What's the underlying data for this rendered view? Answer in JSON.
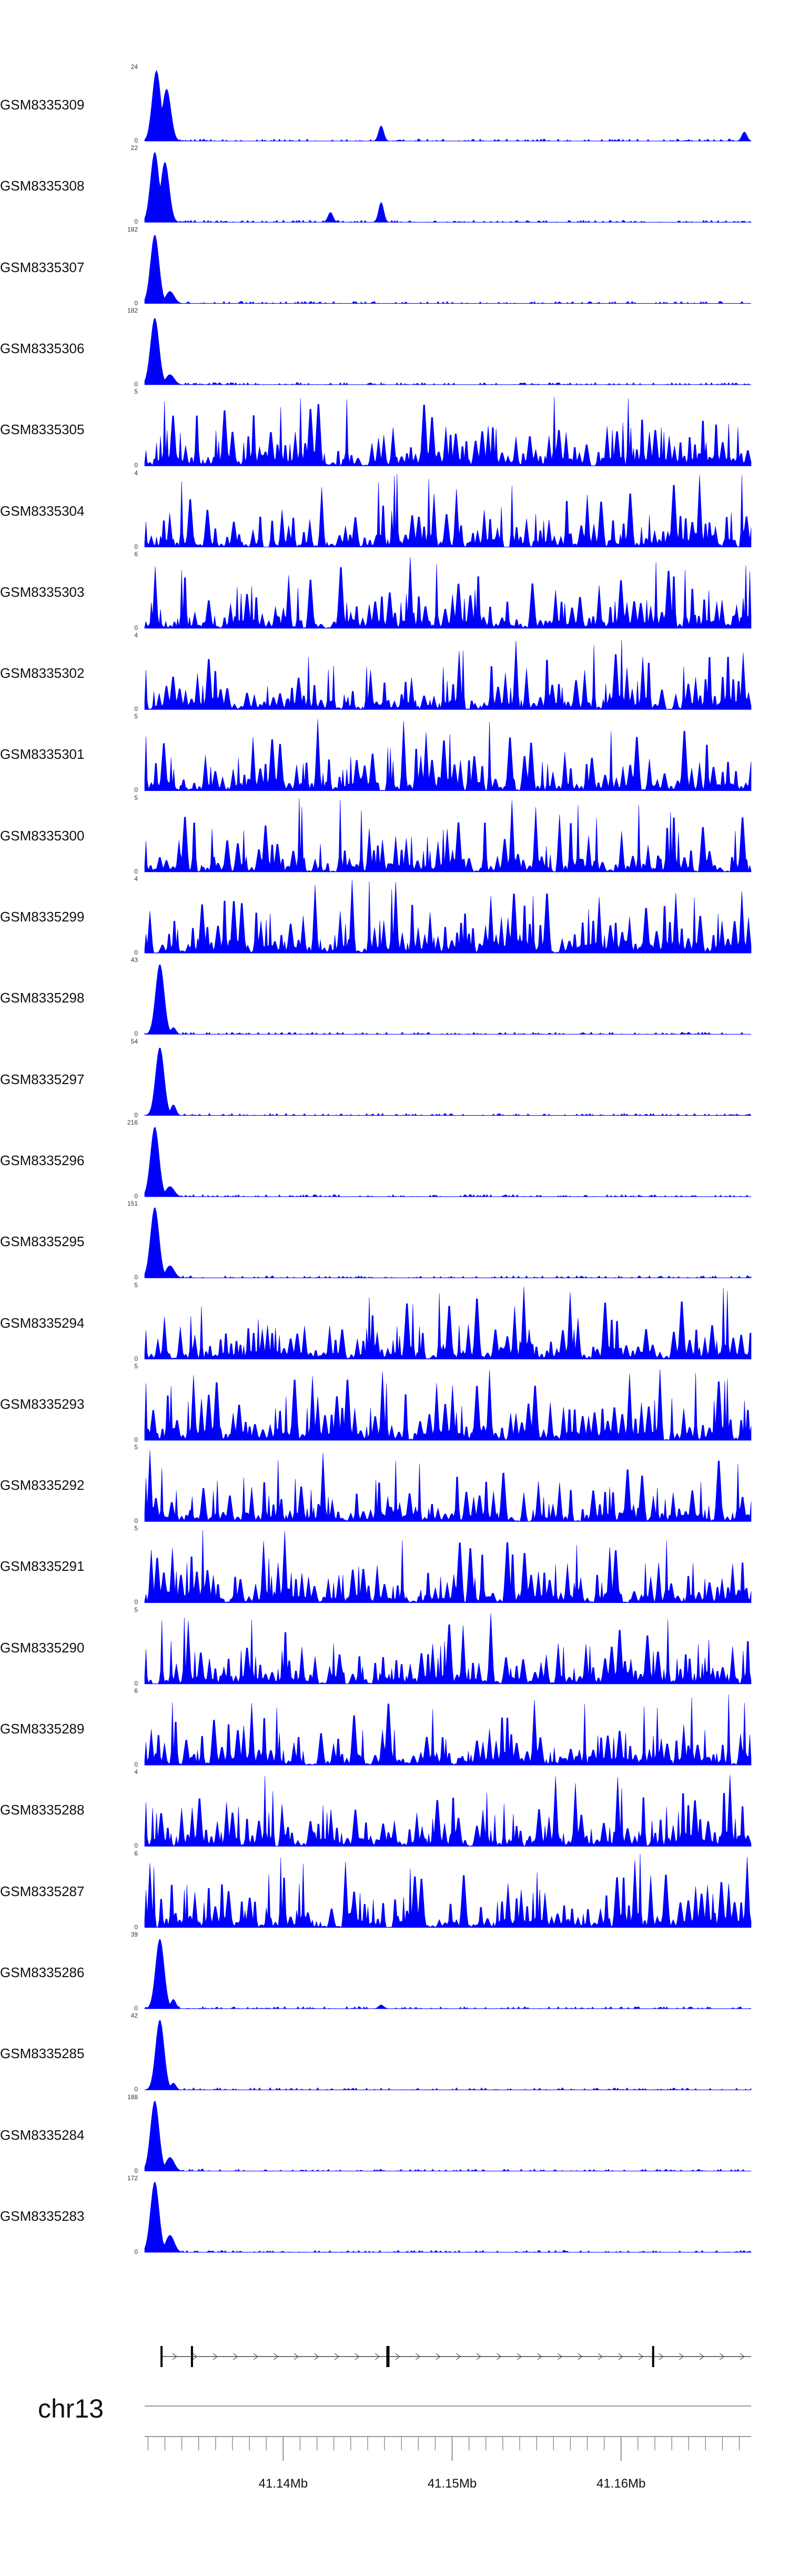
{
  "chart_data": {
    "type": "area",
    "color": "#0000ff",
    "chromosome": "chr13",
    "xlim": [
      41.1318,
      41.1677
    ],
    "x_ticks": [
      41.14,
      41.15,
      41.16
    ],
    "x_tick_labels": [
      "41.14Mb",
      "41.15Mb",
      "41.16Mb"
    ],
    "gene_track": {
      "x_start": 41.1328,
      "x_end": 41.1677,
      "strand": "+",
      "exons": [
        41.1328,
        41.1346,
        41.1462,
        41.1619
      ]
    },
    "series": [
      {
        "name": "GSM8335309",
        "ymax": 24,
        "ymin": 0,
        "profile": "peaky",
        "peak_x": [
          41.1325,
          41.1331
        ],
        "peak_y": [
          23,
          17
        ],
        "extra_peaks": [
          [
            41.1458,
            5
          ],
          [
            41.1673,
            3
          ]
        ]
      },
      {
        "name": "GSM8335308",
        "ymax": 22,
        "ymin": 0,
        "profile": "peaky",
        "peak_x": [
          41.1324,
          41.133
        ],
        "peak_y": [
          21,
          18
        ],
        "extra_peaks": [
          [
            41.1458,
            6
          ],
          [
            41.1428,
            3
          ]
        ]
      },
      {
        "name": "GSM8335307",
        "ymax": 182,
        "ymin": 0,
        "profile": "peaky",
        "peak_x": [
          41.1324,
          41.1333
        ],
        "peak_y": [
          170,
          30
        ],
        "extra_peaks": []
      },
      {
        "name": "GSM8335306",
        "ymax": 182,
        "ymin": 0,
        "profile": "peaky",
        "peak_x": [
          41.1324,
          41.1333
        ],
        "peak_y": [
          165,
          25
        ],
        "extra_peaks": []
      },
      {
        "name": "GSM8335305",
        "ymax": 5,
        "ymin": 0,
        "profile": "noise",
        "seed": 11
      },
      {
        "name": "GSM8335304",
        "ymax": 4,
        "ymin": 0,
        "profile": "noise",
        "seed": 23
      },
      {
        "name": "GSM8335303",
        "ymax": 6,
        "ymin": 0,
        "profile": "noise",
        "seed": 37
      },
      {
        "name": "GSM8335302",
        "ymax": 4,
        "ymin": 0,
        "profile": "noise",
        "seed": 41
      },
      {
        "name": "GSM8335301",
        "ymax": 5,
        "ymin": 0,
        "profile": "noise",
        "seed": 53
      },
      {
        "name": "GSM8335300",
        "ymax": 5,
        "ymin": 0,
        "profile": "noise",
        "seed": 67
      },
      {
        "name": "GSM8335299",
        "ymax": 4,
        "ymin": 0,
        "profile": "noise",
        "seed": 71
      },
      {
        "name": "GSM8335298",
        "ymax": 43,
        "ymin": 0,
        "profile": "peaky",
        "peak_x": [
          41.1327
        ],
        "peak_y": [
          41
        ],
        "extra_peaks": [
          [
            41.1335,
            4
          ]
        ]
      },
      {
        "name": "GSM8335297",
        "ymax": 54,
        "ymin": 0,
        "profile": "peaky",
        "peak_x": [
          41.1327
        ],
        "peak_y": [
          50
        ],
        "extra_peaks": [
          [
            41.1335,
            8
          ]
        ]
      },
      {
        "name": "GSM8335296",
        "ymax": 216,
        "ymin": 0,
        "profile": "peaky",
        "peak_x": [
          41.1324,
          41.1333
        ],
        "peak_y": [
          205,
          30
        ],
        "extra_peaks": []
      },
      {
        "name": "GSM8335295",
        "ymax": 151,
        "ymin": 0,
        "profile": "peaky",
        "peak_x": [
          41.1324,
          41.1333
        ],
        "peak_y": [
          145,
          25
        ],
        "extra_peaks": []
      },
      {
        "name": "GSM8335294",
        "ymax": 5,
        "ymin": 0,
        "profile": "noise",
        "seed": 83
      },
      {
        "name": "GSM8335293",
        "ymax": 5,
        "ymin": 0,
        "profile": "noise",
        "seed": 97
      },
      {
        "name": "GSM8335292",
        "ymax": 5,
        "ymin": 0,
        "profile": "noise",
        "seed": 101
      },
      {
        "name": "GSM8335291",
        "ymax": 5,
        "ymin": 0,
        "profile": "noise",
        "seed": 113
      },
      {
        "name": "GSM8335290",
        "ymax": 5,
        "ymin": 0,
        "profile": "noise",
        "seed": 127
      },
      {
        "name": "GSM8335289",
        "ymax": 6,
        "ymin": 0,
        "profile": "noise",
        "seed": 131
      },
      {
        "name": "GSM8335288",
        "ymax": 4,
        "ymin": 0,
        "profile": "noise",
        "seed": 139
      },
      {
        "name": "GSM8335287",
        "ymax": 6,
        "ymin": 0,
        "profile": "noise",
        "seed": 149
      },
      {
        "name": "GSM8335286",
        "ymax": 39,
        "ymin": 0,
        "profile": "peaky",
        "peak_x": [
          41.1327
        ],
        "peak_y": [
          37
        ],
        "extra_peaks": [
          [
            41.1335,
            5
          ],
          [
            41.1458,
            2
          ]
        ]
      },
      {
        "name": "GSM8335285",
        "ymax": 42,
        "ymin": 0,
        "profile": "peaky",
        "peak_x": [
          41.1327
        ],
        "peak_y": [
          40
        ],
        "extra_peaks": [
          [
            41.1335,
            4
          ]
        ]
      },
      {
        "name": "GSM8335284",
        "ymax": 188,
        "ymin": 0,
        "profile": "peaky",
        "peak_x": [
          41.1324,
          41.1333
        ],
        "peak_y": [
          180,
          35
        ],
        "extra_peaks": []
      },
      {
        "name": "GSM8335283",
        "ymax": 172,
        "ymin": 0,
        "profile": "peaky",
        "peak_x": [
          41.1324,
          41.1333
        ],
        "peak_y": [
          165,
          40
        ],
        "extra_peaks": []
      }
    ]
  }
}
